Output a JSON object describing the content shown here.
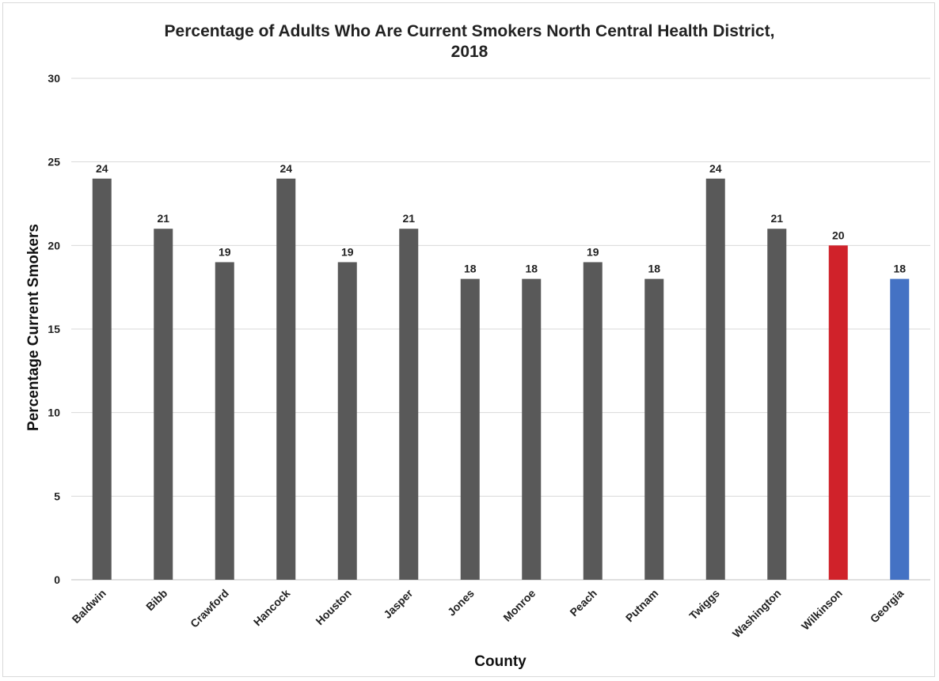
{
  "chart_data": {
    "type": "bar",
    "title": [
      "Percentage of Adults Who Are Current Smokers North Central Health District,",
      "2018"
    ],
    "xlabel": "County",
    "ylabel": "Percentage Current Smokers",
    "ylim": [
      0,
      30
    ],
    "yticks": [
      0,
      5,
      10,
      15,
      20,
      25,
      30
    ],
    "grid": true,
    "legend": "none",
    "categories": [
      "Baldwin",
      "Bibb",
      "Crawford",
      "Hancock",
      "Houston",
      "Jasper",
      "Jones",
      "Monroe",
      "Peach",
      "Putnam",
      "Twiggs",
      "Washington",
      "Wilkinson",
      "Georgia"
    ],
    "values": [
      24,
      21,
      19,
      24,
      19,
      21,
      18,
      18,
      19,
      18,
      24,
      21,
      20,
      18
    ],
    "colors": [
      "#595959",
      "#595959",
      "#595959",
      "#595959",
      "#595959",
      "#595959",
      "#595959",
      "#595959",
      "#595959",
      "#595959",
      "#595959",
      "#595959",
      "#d0222a",
      "#4472c4"
    ]
  }
}
